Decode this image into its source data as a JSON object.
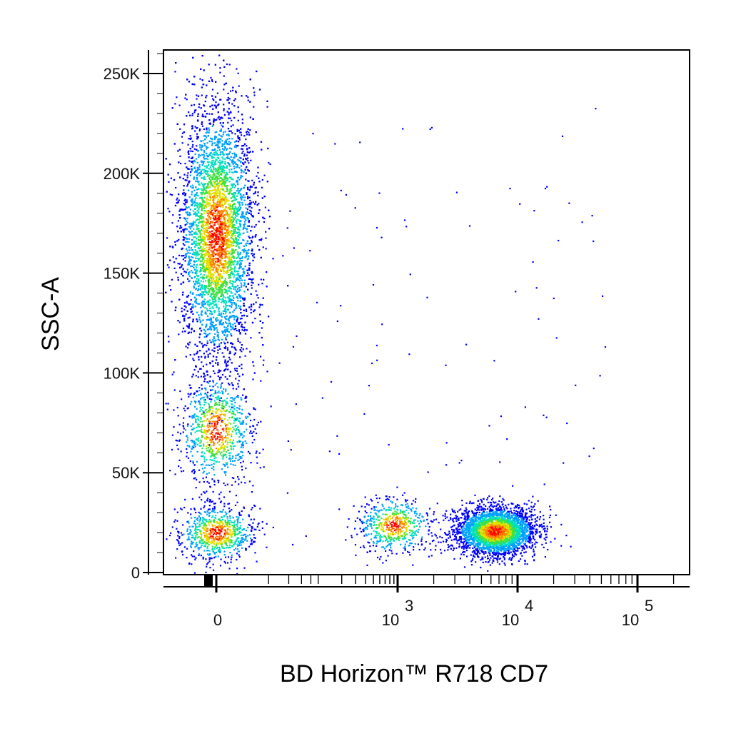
{
  "chart_data": {
    "type": "scatter",
    "subtype": "flow-cytometry-density-dot-plot",
    "title": "",
    "xlabel": "BD Horizon™ R718 CD7",
    "ylabel": "SSC-A",
    "x_scale": "biexponential",
    "xlim": [
      -100,
      200000
    ],
    "ylim": [
      0,
      262144
    ],
    "x_ticks": [
      {
        "value": 0,
        "base": "0",
        "exp": ""
      },
      {
        "value": 1000,
        "base": "10",
        "exp": "3"
      },
      {
        "value": 10000,
        "base": "10",
        "exp": "4"
      },
      {
        "value": 100000,
        "base": "10",
        "exp": "5"
      }
    ],
    "y_ticks": [
      {
        "value": 0,
        "label": "0"
      },
      {
        "value": 50000,
        "label": "50K"
      },
      {
        "value": 100000,
        "label": "100K"
      },
      {
        "value": 150000,
        "label": "150K"
      },
      {
        "value": 200000,
        "label": "200K"
      },
      {
        "value": 250000,
        "label": "250K"
      }
    ],
    "grid": false,
    "legend": "none",
    "colormap": [
      "#0000ff",
      "#00a0ff",
      "#00e0c0",
      "#40e040",
      "#e0e000",
      "#ff8000",
      "#ff0000"
    ],
    "populations": [
      {
        "x_center": 0,
        "y_center": 170000,
        "x_spread_pt": 0.28,
        "y_sd": 32000,
        "count": 6500,
        "peak_y": 170000
      },
      {
        "x_center": 0,
        "y_center": 72000,
        "x_spread_pt": 0.28,
        "y_sd": 14000,
        "count": 900,
        "peak_y": 72000
      },
      {
        "x_center": 0,
        "y_center": 20000,
        "x_spread_pt": 0.3,
        "y_sd": 7000,
        "count": 800,
        "peak_y": 20000
      },
      {
        "x_center": 6500,
        "y_center": 21000,
        "x_spread_pt": 0.3,
        "y_sd": 6000,
        "count": 3200,
        "peak_y": 20000
      },
      {
        "x_center": 900,
        "y_center": 24000,
        "x_spread_pt": 0.28,
        "y_sd": 7000,
        "count": 600,
        "peak_y": 24000
      }
    ]
  }
}
